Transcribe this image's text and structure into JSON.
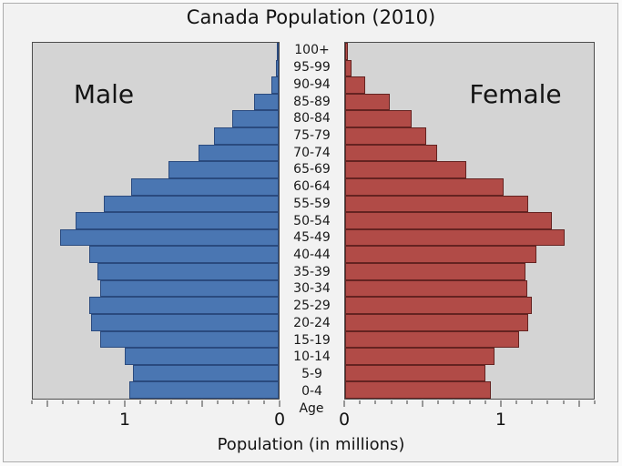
{
  "title": "Canada Population (2010)",
  "annotations": {
    "male": "Male",
    "female": "Female"
  },
  "axis": {
    "age_title": "Age",
    "xlabel": "Population (in millions)"
  },
  "colors": {
    "figure_background": "#f2f2f2",
    "plot_background": "#d4d4d4",
    "male_fill": "#4a76b2",
    "male_edge": "#2a4a7e",
    "female_fill": "#b14b47",
    "female_edge": "#642321",
    "spine": "#4d4d4d",
    "frame_border": "#adadad"
  },
  "chart_data": {
    "type": "bar",
    "subtype": "population-pyramid",
    "title": "Canada Population (2010)",
    "xlabel": "Population (in millions)",
    "age_axis_label": "Age",
    "unit": "millions of people",
    "categories_top_to_bottom": [
      "100+",
      "95-99",
      "90-94",
      "85-89",
      "80-84",
      "75-79",
      "70-74",
      "65-69",
      "60-64",
      "55-59",
      "50-54",
      "45-49",
      "40-44",
      "35-39",
      "30-34",
      "25-29",
      "20-24",
      "15-19",
      "10-14",
      "5-9",
      "0-4"
    ],
    "series": [
      {
        "name": "Male",
        "side": "left",
        "axis_direction": "0 at center, values increase leftward",
        "color": "#4a76b2",
        "values_millions": [
          0.005,
          0.015,
          0.05,
          0.16,
          0.3,
          0.42,
          0.52,
          0.72,
          0.96,
          1.14,
          1.32,
          1.42,
          1.23,
          1.18,
          1.16,
          1.23,
          1.22,
          1.16,
          1.0,
          0.95,
          0.97
        ]
      },
      {
        "name": "Female",
        "side": "right",
        "axis_direction": "0 at center, values increase rightward",
        "color": "#b14b47",
        "values_millions": [
          0.015,
          0.04,
          0.13,
          0.29,
          0.43,
          0.52,
          0.59,
          0.78,
          1.02,
          1.18,
          1.33,
          1.41,
          1.23,
          1.16,
          1.17,
          1.2,
          1.18,
          1.12,
          0.96,
          0.9,
          0.94
        ]
      }
    ],
    "xlim": [
      0,
      1.6
    ],
    "x_minor_tick_step": 0.1,
    "x_major_tick_step": 0.5,
    "x_labeled_ticks": [
      1,
      0
    ],
    "grid": false,
    "legend": "none (Male/Female annotated inside plot areas)"
  }
}
